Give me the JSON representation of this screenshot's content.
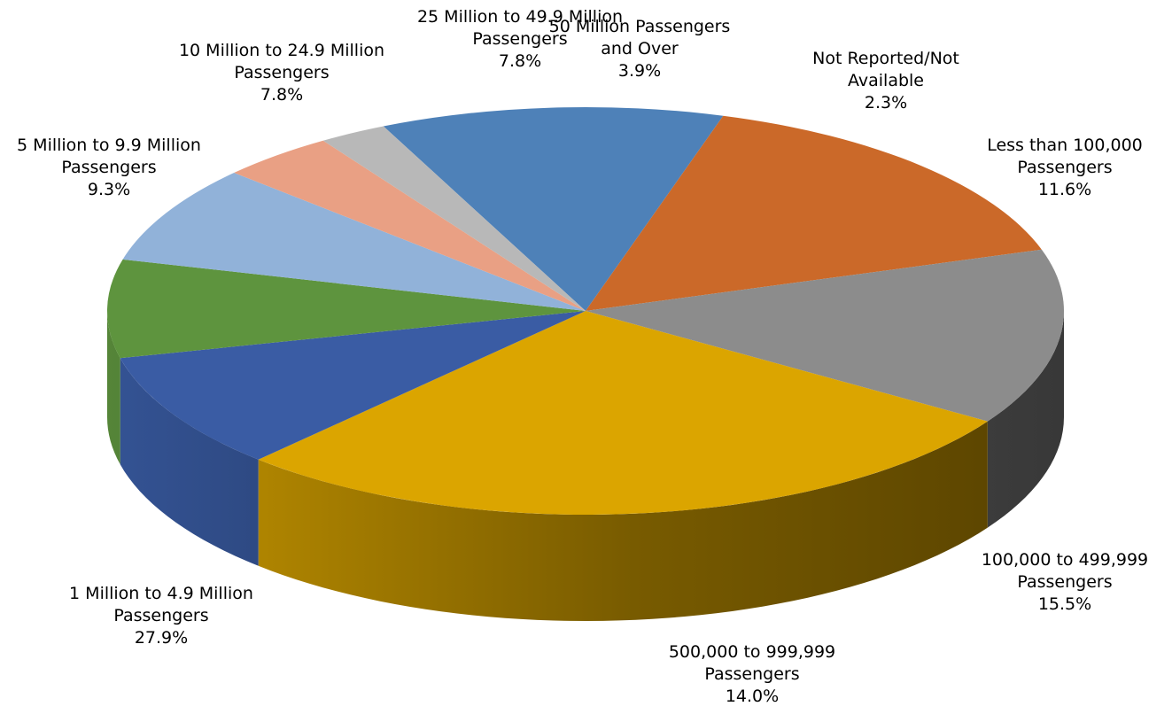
{
  "chart_data": {
    "type": "pie",
    "title": "",
    "slices": [
      {
        "line1": "Less than 100,000",
        "line2": "Passengers",
        "pct": "11.6%",
        "value": 11.6,
        "color": "#4e81b8"
      },
      {
        "line1": "100,000 to 499,999",
        "line2": "Passengers",
        "pct": "15.5%",
        "value": 15.5,
        "color": "#cb6929"
      },
      {
        "line1": "500,000 to 999,999",
        "line2": "Passengers",
        "pct": "14.0%",
        "value": 14.0,
        "color": "#8c8c8c"
      },
      {
        "line1": "1 Million to 4.9 Million",
        "line2": "Passengers",
        "pct": "27.9%",
        "value": 27.9,
        "color": "#dba500"
      },
      {
        "line1": "5 Million to 9.9 Million",
        "line2": "Passengers",
        "pct": "9.3%",
        "value": 9.3,
        "color": "#3a5ca4"
      },
      {
        "line1": "10 Million to 24.9 Million",
        "line2": "Passengers",
        "pct": "7.8%",
        "value": 7.8,
        "color": "#5e943e"
      },
      {
        "line1": "25 Million to 49.9 Million",
        "line2": "Passengers",
        "pct": "7.8%",
        "value": 7.8,
        "color": "#91b2d9"
      },
      {
        "line1": "50 Million Passengers",
        "line2": "and Over",
        "pct": "3.9%",
        "value": 3.9,
        "color": "#e9a084"
      },
      {
        "line1": "Not Reported/Not",
        "line2": "Available",
        "pct": "2.3%",
        "value": 2.3,
        "color": "#b8b8b8"
      }
    ],
    "legend": "none",
    "grid": false
  }
}
